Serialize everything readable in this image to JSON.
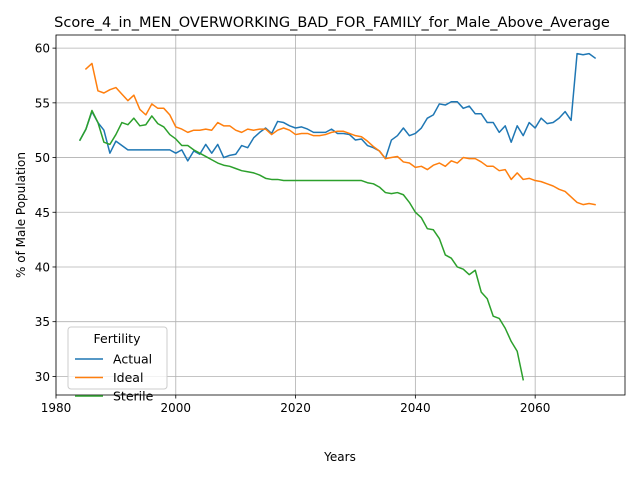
{
  "chart_data": {
    "type": "line",
    "title": "Score_4_in_MEN_OVERWORKING_BAD_FOR_FAMILY_for_Male_Above_Average",
    "xlabel": "Years",
    "ylabel": "% of Male Population",
    "xlim": [
      1980,
      2075
    ],
    "ylim": [
      28.3,
      61.2
    ],
    "xticks": [
      1980,
      2000,
      2020,
      2040,
      2060
    ],
    "yticks": [
      30,
      35,
      40,
      45,
      50,
      55,
      60
    ],
    "grid": true,
    "legend": {
      "title": "Fertility",
      "position": "lower-left"
    },
    "series": [
      {
        "name": "Actual",
        "color": "#1f77b4",
        "x": [
          1984,
          1985,
          1986,
          1987,
          1988,
          1989,
          1990,
          1991,
          1992,
          1993,
          1994,
          1995,
          1996,
          1997,
          1998,
          1999,
          2000,
          2001,
          2002,
          2003,
          2004,
          2005,
          2006,
          2007,
          2008,
          2009,
          2010,
          2011,
          2012,
          2013,
          2014,
          2015,
          2016,
          2017,
          2018,
          2019,
          2020,
          2021,
          2022,
          2023,
          2024,
          2025,
          2026,
          2027,
          2028,
          2029,
          2030,
          2031,
          2032,
          2033,
          2034,
          2035,
          2036,
          2037,
          2038,
          2039,
          2040,
          2041,
          2042,
          2043,
          2044,
          2045,
          2046,
          2047,
          2048,
          2049,
          2050,
          2051,
          2052,
          2053,
          2054,
          2055,
          2056,
          2057,
          2058,
          2059,
          2060,
          2061,
          2062,
          2063,
          2064,
          2065,
          2066,
          2067,
          2068,
          2069,
          2070
        ],
        "y": [
          51.6,
          52.6,
          54.2,
          53.2,
          52.5,
          50.4,
          51.5,
          51.1,
          50.7,
          50.7,
          50.7,
          50.7,
          50.7,
          50.7,
          50.7,
          50.7,
          50.4,
          50.7,
          49.7,
          50.6,
          50.3,
          51.2,
          50.4,
          51.2,
          50.0,
          50.2,
          50.3,
          51.1,
          50.9,
          51.8,
          52.3,
          52.7,
          52.2,
          53.3,
          53.2,
          52.9,
          52.7,
          52.8,
          52.6,
          52.3,
          52.3,
          52.3,
          52.6,
          52.2,
          52.2,
          52.1,
          51.6,
          51.7,
          51.1,
          50.9,
          50.6,
          49.9,
          51.6,
          52.0,
          52.7,
          52.0,
          52.2,
          52.7,
          53.6,
          53.9,
          54.9,
          54.8,
          55.1,
          55.1,
          54.5,
          54.7,
          54.0,
          54.0,
          53.2,
          53.2,
          52.3,
          52.9,
          51.4,
          52.9,
          52.0,
          53.2,
          52.7,
          53.6,
          53.1,
          53.2,
          53.6,
          54.2,
          53.4,
          59.5,
          59.4,
          59.5,
          59.1
        ]
      },
      {
        "name": "Ideal",
        "color": "#ff7f0e",
        "x": [
          1985,
          1986,
          1987,
          1988,
          1989,
          1990,
          1991,
          1992,
          1993,
          1994,
          1995,
          1996,
          1997,
          1998,
          1999,
          2000,
          2001,
          2002,
          2003,
          2004,
          2005,
          2006,
          2007,
          2008,
          2009,
          2010,
          2011,
          2012,
          2013,
          2014,
          2015,
          2016,
          2017,
          2018,
          2019,
          2020,
          2021,
          2022,
          2023,
          2024,
          2025,
          2026,
          2027,
          2028,
          2029,
          2030,
          2031,
          2032,
          2033,
          2034,
          2035,
          2036,
          2037,
          2038,
          2039,
          2040,
          2041,
          2042,
          2043,
          2044,
          2045,
          2046,
          2047,
          2048,
          2049,
          2050,
          2051,
          2052,
          2053,
          2054,
          2055,
          2056,
          2057,
          2058,
          2059,
          2060,
          2061,
          2062,
          2063,
          2064,
          2065,
          2066,
          2067,
          2068,
          2069,
          2070
        ],
        "y": [
          58.1,
          58.6,
          56.1,
          55.9,
          56.2,
          56.4,
          55.8,
          55.2,
          55.7,
          54.4,
          53.9,
          54.9,
          54.5,
          54.5,
          53.9,
          52.8,
          52.6,
          52.3,
          52.5,
          52.5,
          52.6,
          52.5,
          53.2,
          52.9,
          52.9,
          52.5,
          52.3,
          52.6,
          52.5,
          52.6,
          52.6,
          52.1,
          52.5,
          52.7,
          52.5,
          52.1,
          52.2,
          52.2,
          52.0,
          52.0,
          52.1,
          52.3,
          52.4,
          52.4,
          52.2,
          52.0,
          51.9,
          51.5,
          51.0,
          50.6,
          49.9,
          50.0,
          50.1,
          49.6,
          49.5,
          49.1,
          49.2,
          48.9,
          49.3,
          49.5,
          49.2,
          49.7,
          49.5,
          50.0,
          49.9,
          49.9,
          49.6,
          49.2,
          49.2,
          48.8,
          48.9,
          48.0,
          48.6,
          48.0,
          48.1,
          47.9,
          47.8,
          47.6,
          47.4,
          47.1,
          46.9,
          46.4,
          45.9,
          45.7,
          45.8,
          45.7
        ]
      },
      {
        "name": "Sterile",
        "color": "#2ca02c",
        "x": [
          1984,
          1985,
          1986,
          1987,
          1988,
          1989,
          1990,
          1991,
          1992,
          1993,
          1994,
          1995,
          1996,
          1997,
          1998,
          1999,
          2000,
          2001,
          2002,
          2003,
          2004,
          2005,
          2006,
          2007,
          2008,
          2009,
          2010,
          2011,
          2012,
          2013,
          2014,
          2015,
          2016,
          2017,
          2018,
          2019,
          2020,
          2021,
          2022,
          2023,
          2024,
          2025,
          2026,
          2027,
          2028,
          2029,
          2030,
          2031,
          2032,
          2033,
          2034,
          2035,
          2036,
          2037,
          2038,
          2039,
          2040,
          2041,
          2042,
          2043,
          2044,
          2045,
          2046,
          2047,
          2048,
          2049,
          2050,
          2051,
          2052,
          2053,
          2054,
          2055,
          2056,
          2057,
          2058
        ],
        "y": [
          51.6,
          52.6,
          54.3,
          53.2,
          51.4,
          51.2,
          52.1,
          53.2,
          53.0,
          53.6,
          52.9,
          53.0,
          53.8,
          53.1,
          52.8,
          52.1,
          51.7,
          51.1,
          51.1,
          50.7,
          50.4,
          50.1,
          49.8,
          49.5,
          49.3,
          49.2,
          49.0,
          48.8,
          48.7,
          48.6,
          48.4,
          48.1,
          48.0,
          48.0,
          47.9,
          47.9,
          47.9,
          47.9,
          47.9,
          47.9,
          47.9,
          47.9,
          47.9,
          47.9,
          47.9,
          47.9,
          47.9,
          47.9,
          47.7,
          47.6,
          47.3,
          46.8,
          46.7,
          46.8,
          46.6,
          45.9,
          45.0,
          44.5,
          43.5,
          43.4,
          42.6,
          41.1,
          40.8,
          40.0,
          39.8,
          39.3,
          39.7,
          37.7,
          37.1,
          35.5,
          35.3,
          34.4,
          33.2,
          32.3,
          29.7
        ]
      }
    ]
  }
}
